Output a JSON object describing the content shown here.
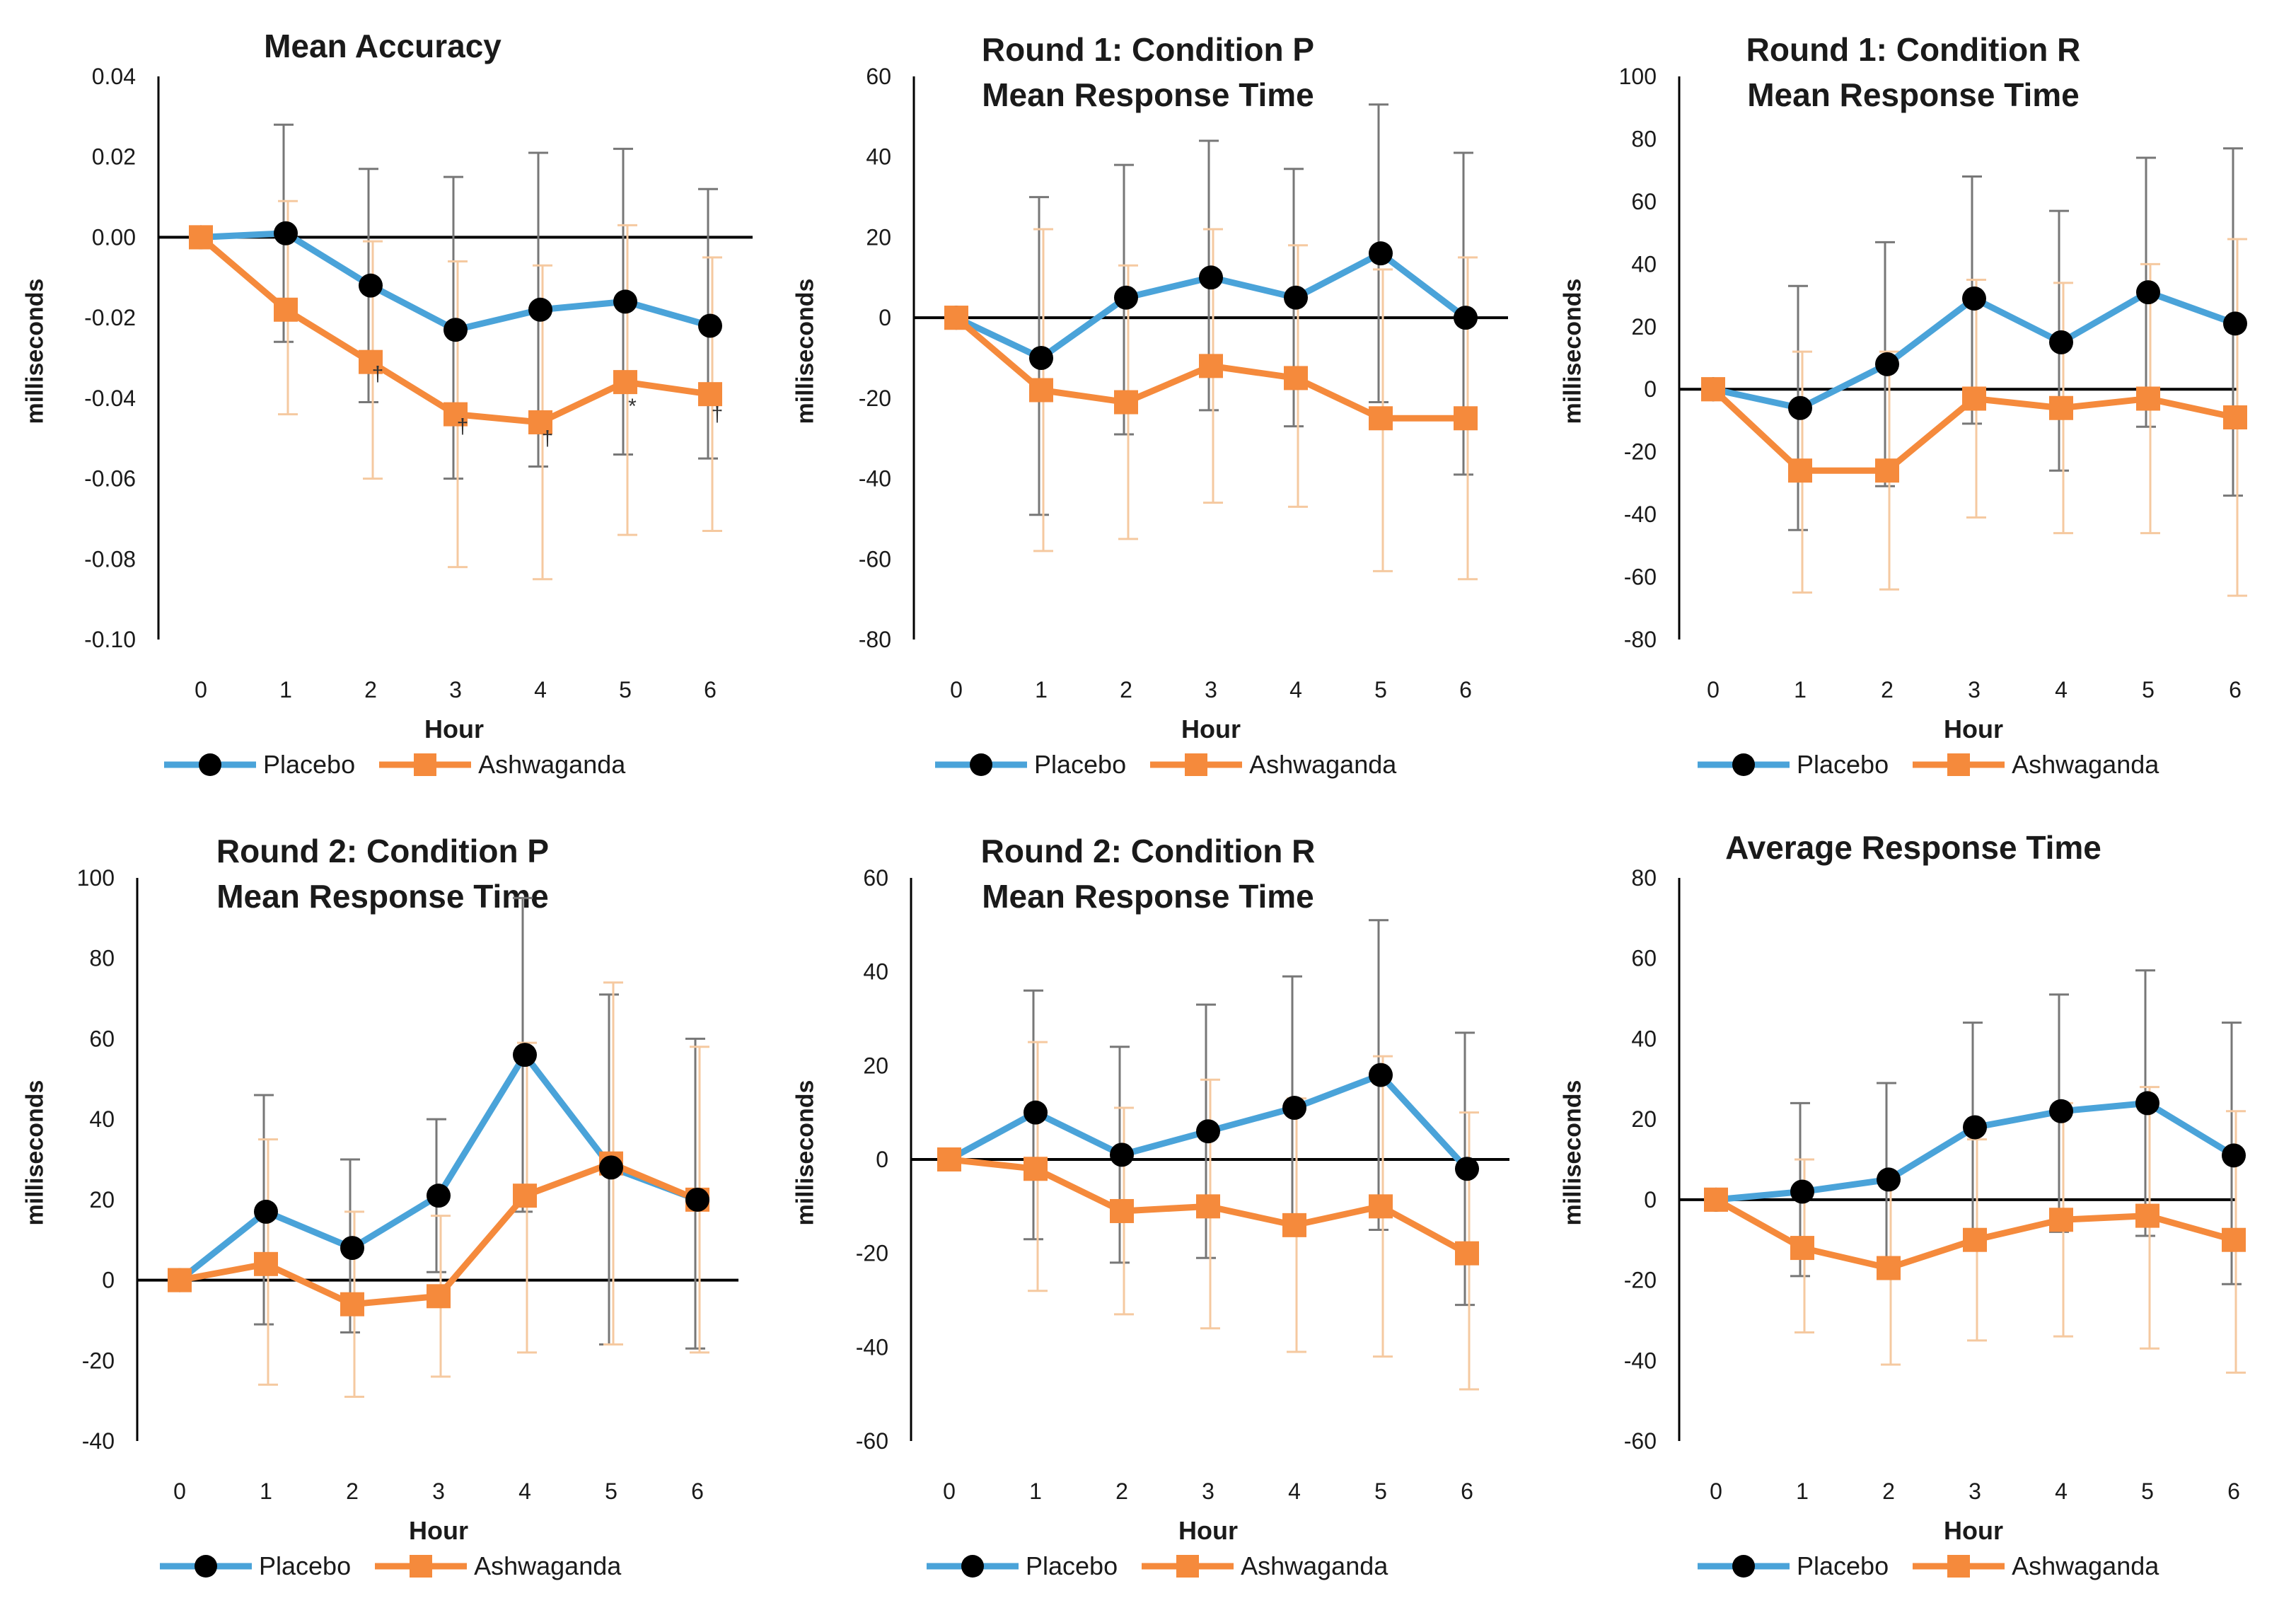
{
  "colors": {
    "placebo": "#4aa3d9",
    "ashwaganda": "#f58a3c",
    "axis": "#000000",
    "placebo_err": "#777777",
    "ashwaganda_err": "#f5c9a0"
  },
  "chart_data": [
    {
      "type": "line",
      "title": "Mean Accuracy",
      "title_lines": [
        "Mean Accuracy"
      ],
      "xlabel": "Hour",
      "ylabel": "milliseconds",
      "x": [
        0,
        1,
        2,
        3,
        4,
        5,
        6
      ],
      "ylim": [
        -0.1,
        0.04
      ],
      "ytick_step": 0.02,
      "yticks": [
        "0.04",
        "0.02",
        "0.00",
        "-0.02",
        "-0.04",
        "-0.06",
        "-0.08",
        "-0.10"
      ],
      "legend": [
        "Placebo",
        "Ashwaganda"
      ],
      "series": [
        {
          "name": "Placebo",
          "values": [
            0,
            0.001,
            -0.012,
            -0.023,
            -0.018,
            -0.016,
            -0.022
          ],
          "err_upper": [
            0,
            0.028,
            0.017,
            0.015,
            0.021,
            0.022,
            0.012
          ],
          "err_lower": [
            0,
            -0.026,
            -0.041,
            -0.06,
            -0.057,
            -0.054,
            -0.055
          ]
        },
        {
          "name": "Ashwaganda",
          "values": [
            0,
            -0.018,
            -0.031,
            -0.044,
            -0.046,
            -0.036,
            -0.039
          ],
          "err_upper": [
            0,
            0.009,
            -0.001,
            -0.006,
            -0.007,
            0.003,
            -0.005
          ],
          "err_lower": [
            0,
            -0.044,
            -0.06,
            -0.082,
            -0.085,
            -0.074,
            -0.073
          ]
        }
      ],
      "annotations": [
        {
          "x": 2,
          "y": -0.034,
          "text": "†"
        },
        {
          "x": 3,
          "y": -0.047,
          "text": "†"
        },
        {
          "x": 4,
          "y": -0.05,
          "text": "†"
        },
        {
          "x": 5,
          "y": -0.042,
          "text": "*"
        },
        {
          "x": 6,
          "y": -0.044,
          "text": "†"
        }
      ]
    },
    {
      "type": "line",
      "title": "Round 1: Condition P Mean Response Time",
      "title_lines": [
        "Round 1: Condition P",
        "Mean Response Time"
      ],
      "xlabel": "Hour",
      "ylabel": "milliseconds",
      "x": [
        0,
        1,
        2,
        3,
        4,
        5,
        6
      ],
      "ylim": [
        -80,
        60
      ],
      "ytick_step": 20,
      "yticks": [
        "60",
        "40",
        "20",
        "0",
        "-20",
        "-40",
        "-60",
        "-80"
      ],
      "legend": [
        "Placebo",
        "Ashwaganda"
      ],
      "series": [
        {
          "name": "Placebo",
          "values": [
            0,
            -10,
            5,
            10,
            5,
            16,
            0
          ],
          "err_upper": [
            0,
            30,
            38,
            44,
            37,
            53,
            41
          ],
          "err_lower": [
            0,
            -49,
            -29,
            -23,
            -27,
            -21,
            -39
          ]
        },
        {
          "name": "Ashwaganda",
          "values": [
            0,
            -18,
            -21,
            -12,
            -15,
            -25,
            -25
          ],
          "err_upper": [
            0,
            22,
            13,
            22,
            18,
            12,
            15
          ],
          "err_lower": [
            0,
            -58,
            -55,
            -46,
            -47,
            -63,
            -65
          ]
        }
      ],
      "annotations": []
    },
    {
      "type": "line",
      "title": "Round 1: Condition R Mean Response Time",
      "title_lines": [
        "Round 1: Condition R",
        "Mean Response Time"
      ],
      "xlabel": "Hour",
      "ylabel": "milliseconds",
      "x": [
        0,
        1,
        2,
        3,
        4,
        5,
        6
      ],
      "ylim": [
        -80,
        100
      ],
      "ytick_step": 20,
      "yticks": [
        "100",
        "80",
        "60",
        "40",
        "20",
        "0",
        "-20",
        "-40",
        "-60",
        "-80"
      ],
      "legend": [
        "Placebo",
        "Ashwaganda"
      ],
      "series": [
        {
          "name": "Placebo",
          "values": [
            0,
            -6,
            8,
            29,
            15,
            31,
            21
          ],
          "err_upper": [
            0,
            33,
            47,
            68,
            57,
            74,
            77
          ],
          "err_lower": [
            0,
            -45,
            -31,
            -11,
            -26,
            -12,
            -34
          ]
        },
        {
          "name": "Ashwaganda",
          "values": [
            0,
            -26,
            -26,
            -3,
            -6,
            -3,
            -9
          ],
          "err_upper": [
            0,
            12,
            12,
            35,
            34,
            40,
            48
          ],
          "err_lower": [
            0,
            -65,
            -64,
            -41,
            -46,
            -46,
            -66
          ]
        }
      ],
      "annotations": []
    },
    {
      "type": "line",
      "title": "Round 2: Condition P Mean Response Time",
      "title_lines": [
        "Round 2: Condition P",
        "Mean Response Time"
      ],
      "xlabel": "Hour",
      "ylabel": "milliseconds",
      "x": [
        0,
        1,
        2,
        3,
        4,
        5,
        6
      ],
      "ylim": [
        -40,
        100
      ],
      "ytick_step": 20,
      "yticks": [
        "100",
        "80",
        "60",
        "40",
        "20",
        "0",
        "-20",
        "-40"
      ],
      "legend": [
        "Placebo",
        "Ashwaganda"
      ],
      "series": [
        {
          "name": "Placebo",
          "values": [
            0,
            17,
            8,
            21,
            56,
            28,
            20
          ],
          "err_upper": [
            0,
            46,
            30,
            40,
            95,
            71,
            60
          ],
          "err_lower": [
            0,
            -11,
            -13,
            2,
            17,
            -16,
            -17
          ]
        },
        {
          "name": "Ashwaganda",
          "values": [
            0,
            4,
            -6,
            -4,
            21,
            29,
            20
          ],
          "err_upper": [
            0,
            35,
            17,
            16,
            59,
            74,
            58
          ],
          "err_lower": [
            0,
            -26,
            -29,
            -24,
            -18,
            -16,
            -18
          ]
        }
      ],
      "annotations": []
    },
    {
      "type": "line",
      "title": "Round 2: Condition R Mean Response Time",
      "title_lines": [
        "Round 2: Condition R",
        "Mean Response Time"
      ],
      "xlabel": "Hour",
      "ylabel": "milliseconds",
      "x": [
        0,
        1,
        2,
        3,
        4,
        5,
        6
      ],
      "ylim": [
        -60,
        60
      ],
      "ytick_step": 20,
      "yticks": [
        "60",
        "40",
        "20",
        "0",
        "-20",
        "-40",
        "-60"
      ],
      "legend": [
        "Placebo",
        "Ashwaganda"
      ],
      "series": [
        {
          "name": "Placebo",
          "values": [
            0,
            10,
            1,
            6,
            11,
            18,
            -2
          ],
          "err_upper": [
            0,
            36,
            24,
            33,
            39,
            51,
            27
          ],
          "err_lower": [
            0,
            -17,
            -22,
            -21,
            -16,
            -15,
            -31
          ]
        },
        {
          "name": "Ashwaganda",
          "values": [
            0,
            -2,
            -11,
            -10,
            -14,
            -10,
            -20
          ],
          "err_upper": [
            0,
            25,
            11,
            17,
            13,
            22,
            10
          ],
          "err_lower": [
            0,
            -28,
            -33,
            -36,
            -41,
            -42,
            -49
          ]
        }
      ],
      "annotations": []
    },
    {
      "type": "line",
      "title": "Average Response Time",
      "title_lines": [
        "Average Response Time"
      ],
      "xlabel": "Hour",
      "ylabel": "milliseconds",
      "x": [
        0,
        1,
        2,
        3,
        4,
        5,
        6
      ],
      "ylim": [
        -60,
        80
      ],
      "ytick_step": 20,
      "yticks": [
        "80",
        "60",
        "40",
        "20",
        "0",
        "-20",
        "-40",
        "-60"
      ],
      "legend": [
        "Placebo",
        "Ashwaganda"
      ],
      "series": [
        {
          "name": "Placebo",
          "values": [
            0,
            2,
            5,
            18,
            22,
            24,
            11
          ],
          "err_upper": [
            0,
            24,
            29,
            44,
            51,
            57,
            44
          ],
          "err_lower": [
            0,
            -19,
            -19,
            -9,
            -8,
            -9,
            -21
          ]
        },
        {
          "name": "Ashwaganda",
          "values": [
            0,
            -12,
            -17,
            -10,
            -5,
            -4,
            -10
          ],
          "err_upper": [
            0,
            10,
            7,
            15,
            24,
            28,
            22
          ],
          "err_lower": [
            0,
            -33,
            -41,
            -35,
            -34,
            -37,
            -43
          ]
        }
      ],
      "annotations": []
    }
  ]
}
